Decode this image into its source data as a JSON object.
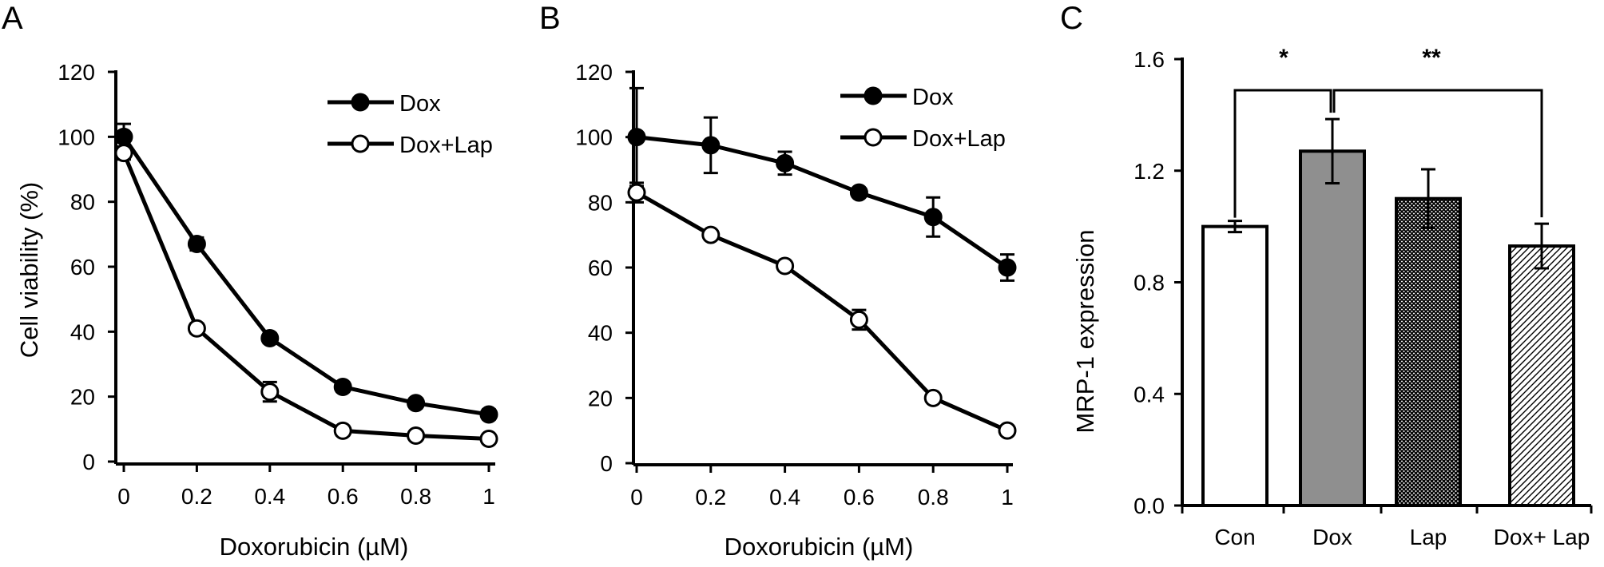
{
  "chart_data": [
    {
      "panel": "A",
      "type": "line",
      "xlabel": "Doxorubicin (µM)",
      "ylabel": "Cell viability (%)",
      "x": [
        0,
        0.2,
        0.4,
        0.6,
        0.8,
        1
      ],
      "x_ticks": [
        "0",
        "0.2",
        "0.4",
        "0.6",
        "0.8",
        "1"
      ],
      "y_ticks": [
        "0",
        "20",
        "40",
        "60",
        "80",
        "100",
        "120"
      ],
      "ylim": [
        0,
        120
      ],
      "legend_position": "top-right",
      "series": [
        {
          "name": "Dox",
          "marker": "filled-circle",
          "values": [
            100,
            67,
            38,
            23,
            18,
            14.5
          ],
          "errors": [
            4,
            2,
            1.5,
            1.5,
            1.5,
            1.5
          ]
        },
        {
          "name": "Dox+Lap",
          "marker": "open-circle",
          "values": [
            95,
            41,
            21.5,
            9.5,
            8,
            7
          ],
          "errors": [
            2,
            1.5,
            3,
            1.5,
            1,
            1
          ]
        }
      ]
    },
    {
      "panel": "B",
      "type": "line",
      "xlabel": "Doxorubicin (µM)",
      "ylabel": "",
      "x": [
        0,
        0.2,
        0.4,
        0.6,
        0.8,
        1
      ],
      "x_ticks": [
        "0",
        "0.2",
        "0.4",
        "0.6",
        "0.8",
        "1"
      ],
      "y_ticks": [
        "0",
        "20",
        "40",
        "60",
        "80",
        "100",
        "120"
      ],
      "ylim": [
        0,
        120
      ],
      "legend_position": "top-right",
      "series": [
        {
          "name": "Dox",
          "marker": "filled-circle",
          "values": [
            100,
            97.5,
            92,
            83,
            75.5,
            60
          ],
          "errors": [
            15,
            8.5,
            3.5,
            1,
            6,
            4
          ]
        },
        {
          "name": "Dox+Lap",
          "marker": "open-circle",
          "values": [
            83,
            70,
            60.5,
            44,
            20,
            10
          ],
          "errors": [
            3,
            1,
            1,
            3,
            1,
            1
          ]
        }
      ]
    },
    {
      "panel": "C",
      "type": "bar",
      "ylabel": "MRP-1 expression",
      "categories": [
        "Con",
        "Dox",
        "Lap",
        "Dox+ Lap"
      ],
      "values": [
        1.0,
        1.27,
        1.1,
        0.93
      ],
      "errors": [
        0.02,
        0.115,
        0.105,
        0.08
      ],
      "fills": [
        "white",
        "gray",
        "crosshatch",
        "diagonal"
      ],
      "y_ticks": [
        "0.0",
        "0.4",
        "0.8",
        "1.2",
        "1.6"
      ],
      "ylim": [
        0,
        1.6
      ],
      "annotations": [
        {
          "text": "*",
          "from": "Con",
          "to": "Dox"
        },
        {
          "text": "**",
          "from": "Dox",
          "to": "Dox+ Lap"
        }
      ]
    }
  ],
  "colors": {
    "ink": "#000000",
    "dox_bar": "#8f8f8f",
    "background": "#ffffff"
  }
}
